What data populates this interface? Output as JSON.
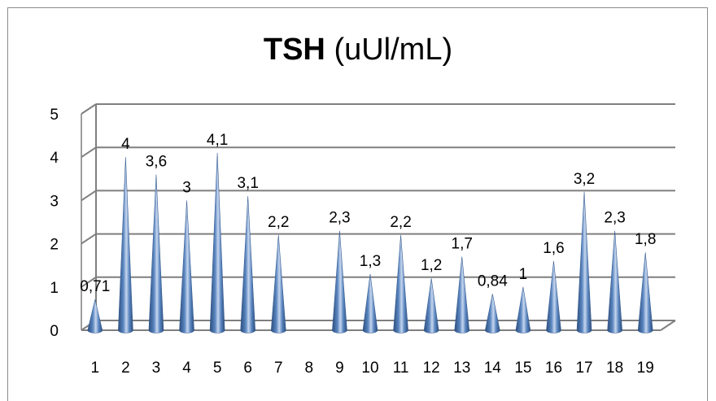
{
  "chart_data": {
    "type": "bar",
    "style": "3d-cone",
    "title_bold": "TSH",
    "title_rest": "(uUl/mL)",
    "xlabel": "",
    "ylabel": "",
    "ylim": [
      0,
      5
    ],
    "yticks": [
      "0",
      "1",
      "2",
      "3",
      "4",
      "5"
    ],
    "grid": true,
    "legend": "none",
    "bar_color": "#4f81bd",
    "categories": [
      "1",
      "2",
      "3",
      "4",
      "5",
      "6",
      "7",
      "8",
      "9",
      "10",
      "11",
      "12",
      "13",
      "14",
      "15",
      "16",
      "17",
      "18",
      "19"
    ],
    "values": [
      0.71,
      4,
      3.6,
      3,
      4.1,
      3.1,
      2.2,
      null,
      2.3,
      1.3,
      2.2,
      1.2,
      1.7,
      0.84,
      1,
      1.6,
      3.2,
      2.3,
      1.8
    ],
    "data_labels": [
      "0,71",
      "4",
      "3,6",
      "3",
      "4,1",
      "3,1",
      "2,2",
      "",
      "2,3",
      "1,3",
      "2,2",
      "1,2",
      "1,7",
      "0,84",
      "1",
      "1,6",
      "3,2",
      "2,3",
      "1,8"
    ]
  }
}
